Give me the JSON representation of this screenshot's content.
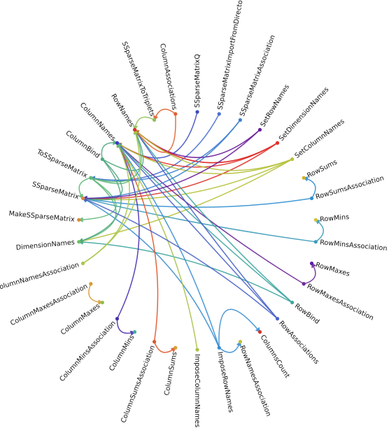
{
  "nodes": [
    {
      "label": "SSparseMatrixQ"
    },
    {
      "label": "SSparseMatrixImportFromDirectory"
    },
    {
      "label": "SSparseMatrixAssociation"
    },
    {
      "label": "SetRowNames"
    },
    {
      "label": "SetDimensionNames"
    },
    {
      "label": "SetColumnNames"
    },
    {
      "label": "RowSums"
    },
    {
      "label": "RowSumsAssociation"
    },
    {
      "label": "RowMins"
    },
    {
      "label": "RowMinsAssociation"
    },
    {
      "label": "RowMaxes"
    },
    {
      "label": "RowMaxesAssociation"
    },
    {
      "label": "RowBind"
    },
    {
      "label": "RowAssociations"
    },
    {
      "label": "ColumnsCount"
    },
    {
      "label": "RowNamesAssociation"
    },
    {
      "label": "ImposeRowNames"
    },
    {
      "label": "ImposeColumnNames"
    },
    {
      "label": "ColumnSums"
    },
    {
      "label": "ColumnSumsAssociation"
    },
    {
      "label": "ColumnMins"
    },
    {
      "label": "ColumnMinsAssociation"
    },
    {
      "label": "ColumnMaxes"
    },
    {
      "label": "ColumnMaxesAssociation"
    },
    {
      "label": "ColumnNamesAssociation"
    },
    {
      "label": "DimensionNames"
    },
    {
      "label": "MakeSSparseMatrix"
    },
    {
      "label": "SSparseMatrix"
    },
    {
      "label": "ToSSparseMatrix"
    },
    {
      "label": "ColumnBind"
    },
    {
      "label": "ColumnNames"
    },
    {
      "label": "RowNames"
    },
    {
      "label": "SSparseMatrixToTriplets"
    },
    {
      "label": "ColumnAssociations"
    }
  ]
}
